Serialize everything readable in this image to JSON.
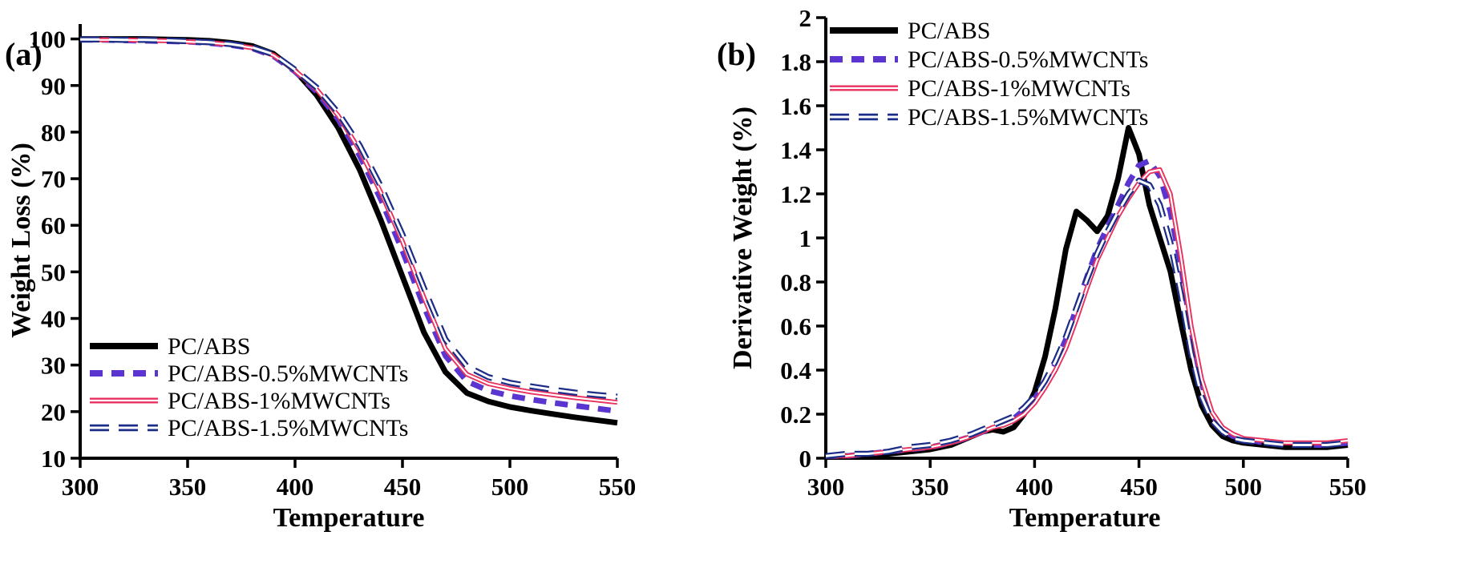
{
  "figure": {
    "panels": [
      {
        "id": "a",
        "panel_label": "(a)",
        "xlabel": "Temperature",
        "ylabel": "Weight Loss (%)"
      },
      {
        "id": "b",
        "panel_label": "(b)",
        "xlabel": "Temperature",
        "ylabel": "Derivative Weight  (%)"
      }
    ],
    "colors": {
      "pc_abs": "#000000",
      "mwcnt_05": "#5a35cf",
      "mwcnt_1": "#e8315f",
      "mwcnt_15": "#1c2d87"
    }
  },
  "chart_data": [
    {
      "type": "line",
      "panel": "a",
      "title": "",
      "xlabel": "Temperature",
      "ylabel": "Weight Loss (%)",
      "xlim": [
        300,
        550
      ],
      "ylim": [
        10,
        100
      ],
      "xticks": [
        "300",
        "350",
        "400",
        "450",
        "500",
        "550"
      ],
      "yticks": [
        "10",
        "20",
        "30",
        "40",
        "50",
        "60",
        "70",
        "80",
        "90",
        "100"
      ],
      "grid": false,
      "legend_position": "lower left",
      "x": [
        300,
        310,
        320,
        330,
        340,
        350,
        360,
        370,
        380,
        390,
        400,
        410,
        420,
        430,
        440,
        450,
        460,
        470,
        480,
        490,
        500,
        510,
        520,
        530,
        540,
        550
      ],
      "series": [
        {
          "name": "PC/ABS",
          "color": "#000000",
          "style": "solid-thick",
          "values": [
            100,
            100,
            100,
            100,
            99.9,
            99.8,
            99.6,
            99.2,
            98.5,
            96.8,
            93.2,
            88,
            81,
            72,
            61,
            49,
            37,
            28.5,
            24,
            22.2,
            21,
            20.2,
            19.5,
            18.8,
            18.2,
            17.6
          ]
        },
        {
          "name": "PC/ABS-0.5%MWCNTs",
          "color": "#5a35cf",
          "style": "dashed-thick",
          "values": [
            99.8,
            99.8,
            99.7,
            99.6,
            99.5,
            99.4,
            99.1,
            98.7,
            98,
            96.3,
            93,
            88.7,
            82.8,
            75,
            65.5,
            54.5,
            42.5,
            32,
            26.5,
            24.5,
            23.4,
            22.6,
            21.9,
            21.3,
            20.7,
            20.1
          ]
        },
        {
          "name": "PC/ABS-1%MWCNTs",
          "color": "#e8315f",
          "style": "solid-hollow",
          "values": [
            99.9,
            99.8,
            99.8,
            99.7,
            99.6,
            99.4,
            99.2,
            98.8,
            98.1,
            96.5,
            93.2,
            89.2,
            83.6,
            76.2,
            67,
            56.5,
            44.5,
            33.5,
            28,
            26,
            25,
            24.2,
            23.6,
            23,
            22.5,
            22
          ]
        },
        {
          "name": "PC/ABS-1.5%MWCNTs",
          "color": "#1c2d87",
          "style": "dashed-hollow",
          "values": [
            99.9,
            99.9,
            99.8,
            99.8,
            99.7,
            99.5,
            99.3,
            98.9,
            98.2,
            96.7,
            93.4,
            89.6,
            84.2,
            77.2,
            68.3,
            58,
            46.5,
            35.5,
            29.7,
            27.4,
            26.2,
            25.4,
            24.7,
            24.1,
            23.6,
            23.2
          ]
        }
      ]
    },
    {
      "type": "line",
      "panel": "b",
      "title": "",
      "xlabel": "Temperature",
      "ylabel": "Derivative Weight (%)",
      "xlim": [
        300,
        550
      ],
      "ylim": [
        0,
        2
      ],
      "xticks": [
        "300",
        "350",
        "400",
        "450",
        "500",
        "550"
      ],
      "yticks": [
        "0",
        "0.2",
        "0.4",
        "0.6",
        "0.8",
        "1",
        "1.2",
        "1.4",
        "1.6",
        "1.8",
        "2"
      ],
      "grid": false,
      "legend_position": "upper left",
      "x": [
        300,
        310,
        320,
        330,
        340,
        350,
        360,
        370,
        375,
        380,
        385,
        390,
        395,
        400,
        405,
        410,
        415,
        420,
        425,
        430,
        435,
        440,
        445,
        450,
        455,
        460,
        465,
        470,
        475,
        480,
        485,
        490,
        495,
        500,
        510,
        520,
        530,
        540,
        550
      ],
      "series": [
        {
          "name": "PC/ABS",
          "color": "#000000",
          "style": "solid-thick",
          "values": [
            0.01,
            0.01,
            0.02,
            0.02,
            0.03,
            0.04,
            0.06,
            0.1,
            0.12,
            0.13,
            0.12,
            0.14,
            0.2,
            0.3,
            0.46,
            0.68,
            0.95,
            1.12,
            1.08,
            1.03,
            1.1,
            1.27,
            1.5,
            1.38,
            1.15,
            1.0,
            0.85,
            0.62,
            0.4,
            0.24,
            0.15,
            0.1,
            0.08,
            0.07,
            0.06,
            0.05,
            0.05,
            0.05,
            0.06
          ]
        },
        {
          "name": "PC/ABS-0.5%MWCNTs",
          "color": "#5a35cf",
          "style": "dashed-thick",
          "values": [
            0.01,
            0.01,
            0.02,
            0.03,
            0.04,
            0.05,
            0.07,
            0.1,
            0.12,
            0.14,
            0.16,
            0.18,
            0.22,
            0.27,
            0.34,
            0.43,
            0.54,
            0.68,
            0.82,
            0.95,
            1.05,
            1.15,
            1.25,
            1.33,
            1.35,
            1.28,
            1.12,
            0.88,
            0.58,
            0.34,
            0.2,
            0.13,
            0.1,
            0.09,
            0.07,
            0.06,
            0.06,
            0.06,
            0.07
          ]
        },
        {
          "name": "PC/ABS-1%MWCNTs",
          "color": "#e8315f",
          "style": "solid-hollow",
          "values": [
            0.01,
            0.01,
            0.02,
            0.03,
            0.04,
            0.05,
            0.07,
            0.1,
            0.12,
            0.14,
            0.15,
            0.17,
            0.2,
            0.25,
            0.32,
            0.4,
            0.5,
            0.63,
            0.77,
            0.9,
            1.0,
            1.1,
            1.18,
            1.25,
            1.3,
            1.31,
            1.2,
            0.92,
            0.6,
            0.36,
            0.21,
            0.14,
            0.11,
            0.09,
            0.08,
            0.07,
            0.07,
            0.07,
            0.08
          ]
        },
        {
          "name": "PC/ABS-1.5%MWCNTs",
          "color": "#1c2d87",
          "style": "dashed-hollow",
          "values": [
            0.01,
            0.02,
            0.02,
            0.03,
            0.05,
            0.06,
            0.08,
            0.11,
            0.13,
            0.15,
            0.17,
            0.19,
            0.23,
            0.28,
            0.35,
            0.44,
            0.55,
            0.68,
            0.81,
            0.93,
            1.03,
            1.12,
            1.2,
            1.26,
            1.24,
            1.15,
            0.98,
            0.75,
            0.48,
            0.28,
            0.17,
            0.12,
            0.09,
            0.08,
            0.07,
            0.06,
            0.06,
            0.06,
            0.07
          ]
        }
      ]
    }
  ]
}
